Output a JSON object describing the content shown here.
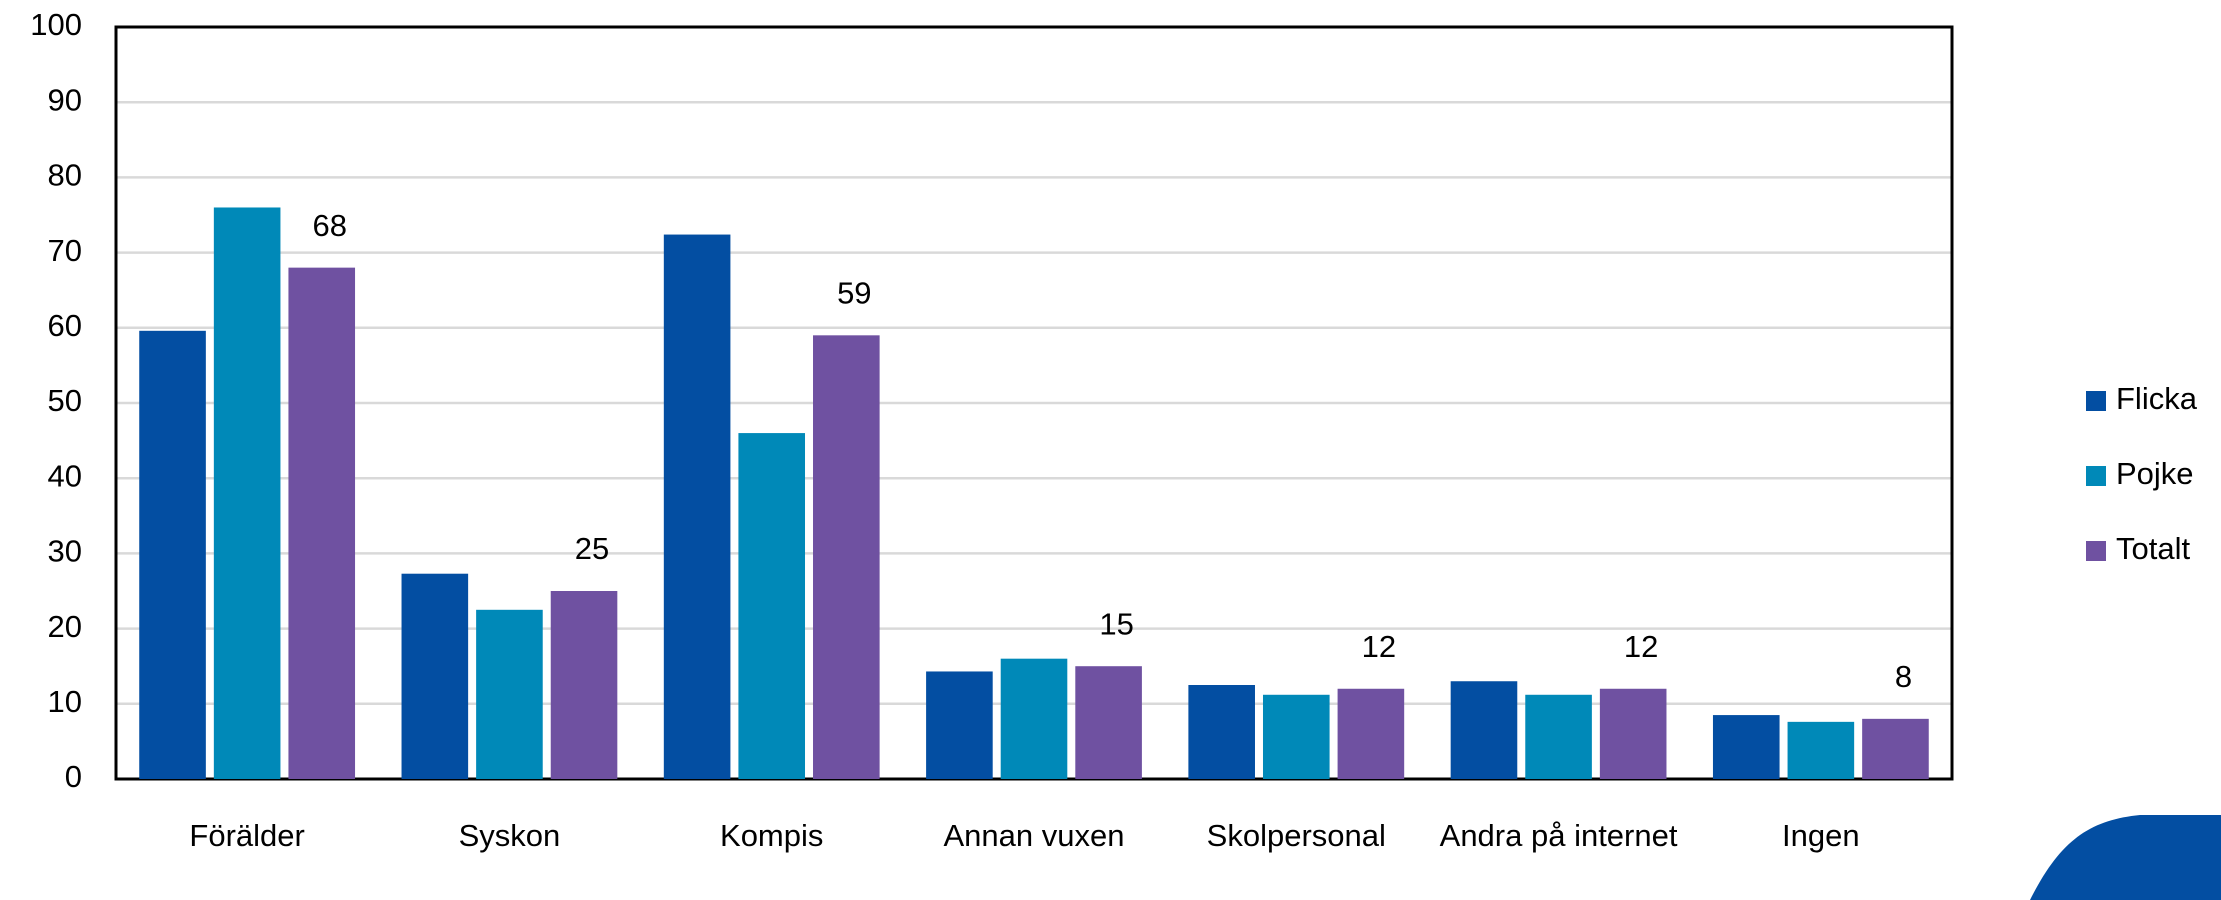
{
  "chart_data": {
    "type": "bar",
    "categories": [
      "Förälder",
      "Syskon",
      "Kompis",
      "Annan vuxen",
      "Skolpersonal",
      "Andra på internet",
      "Ingen"
    ],
    "series": [
      {
        "name": "Flicka",
        "color": "#034ea2",
        "values": [
          59.6,
          27.3,
          72.4,
          14.3,
          12.5,
          13,
          8.5
        ]
      },
      {
        "name": "Pojke",
        "color": "#0089b8",
        "values": [
          76,
          22.5,
          46,
          16,
          11.2,
          11.2,
          7.6
        ]
      },
      {
        "name": "Totalt",
        "color": "#6f51a1",
        "values": [
          68,
          25,
          59,
          15,
          12,
          12,
          8
        ],
        "data_labels": true
      }
    ],
    "ylim": [
      0,
      100
    ],
    "yticks": [
      0,
      10,
      20,
      30,
      40,
      50,
      60,
      70,
      80,
      90,
      100
    ],
    "grid": true,
    "legend": "right"
  }
}
